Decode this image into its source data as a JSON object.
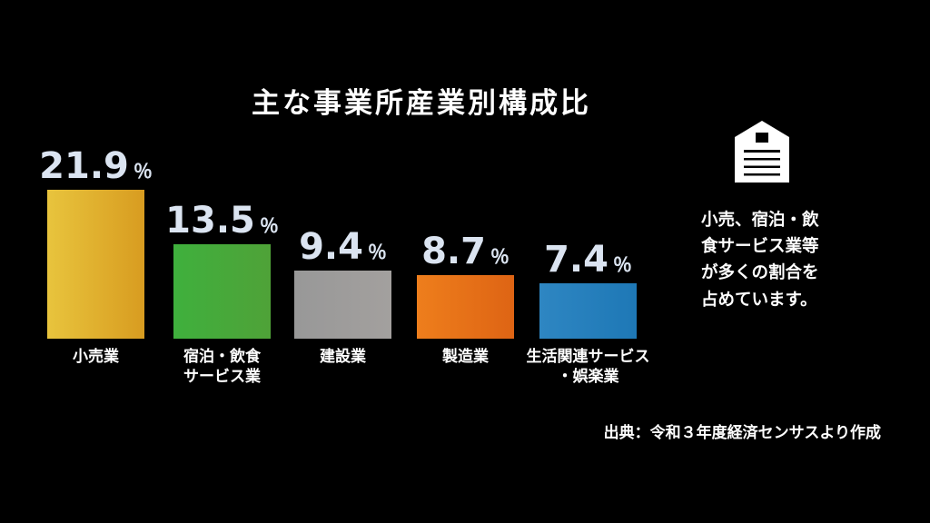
{
  "title": "主な事業所産業別構成比",
  "chart_data": {
    "type": "bar",
    "title": "主な事業所産業別構成比",
    "categories": [
      "小売業",
      "宿泊・飲食\nサービス業",
      "建設業",
      "製造業",
      "生活関連サービス\n・娯楽業"
    ],
    "values": [
      21.9,
      13.5,
      9.4,
      8.7,
      7.4
    ],
    "value_suffix": "％",
    "ylim": [
      0,
      25
    ],
    "grid": false,
    "legend": "none",
    "value_label_color": "#dbe4f1",
    "bar_gradients": [
      [
        "#e8c43d",
        "#d89c20"
      ],
      [
        "#3fb03d",
        "#4fa238"
      ],
      [
        "#989898",
        "#a3a09e"
      ],
      [
        "#ee7e1c",
        "#de6414"
      ],
      [
        "#2e86c2",
        "#1e78b6"
      ]
    ]
  },
  "annotation": {
    "icon": "warehouse-icon",
    "text": "小売、宿泊・飲\n食サービス業等\nが多くの割合を\n占めています。"
  },
  "source": "出典：令和３年度経済センサスより作成",
  "colors": {
    "background": "#000000",
    "text": "#ffffff"
  }
}
